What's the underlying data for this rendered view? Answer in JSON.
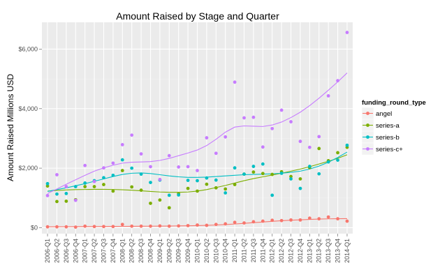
{
  "chart_data": {
    "type": "scatter",
    "title": "Amount Raised by Stage and Quarter",
    "xlabel": "",
    "ylabel": "Amount Raised Millions USD",
    "ylim": [
      -200,
      6900
    ],
    "y_ticks": [
      0,
      2000,
      4000,
      6000
    ],
    "y_tick_labels": [
      "$0",
      "$2,000",
      "$4,000",
      "$6,000"
    ],
    "categories": [
      "2006-Q1",
      "2006-Q2",
      "2006-Q3",
      "2006-Q4",
      "2007-Q1",
      "2007-Q2",
      "2007-Q3",
      "2007-Q4",
      "2008-Q1",
      "2008-Q2",
      "2008-Q3",
      "2008-Q4",
      "2009-Q1",
      "2009-Q2",
      "2009-Q3",
      "2009-Q4",
      "2010-Q1",
      "2010-Q2",
      "2010-Q3",
      "2010-Q4",
      "2011-Q1",
      "2011-Q2",
      "2011-Q3",
      "2011-Q4",
      "2012-Q1",
      "2012-Q2",
      "2012-Q3",
      "2012-Q4",
      "2013-Q1",
      "2013-Q2",
      "2013-Q3",
      "2013-Q4",
      "2014-Q1"
    ],
    "grid": true,
    "legend": {
      "title": "funding_round_type",
      "position": "right"
    },
    "series": [
      {
        "name": "angel",
        "color": "#F8766D",
        "values": [
          30,
          30,
          30,
          20,
          50,
          40,
          40,
          40,
          110,
          50,
          50,
          50,
          60,
          50,
          60,
          70,
          90,
          80,
          110,
          130,
          180,
          160,
          200,
          220,
          250,
          240,
          260,
          260,
          320,
          300,
          360,
          300,
          220
        ],
        "trend": [
          30,
          32,
          34,
          36,
          38,
          40,
          42,
          44,
          46,
          48,
          50,
          52,
          54,
          57,
          61,
          66,
          72,
          80,
          90,
          105,
          125,
          148,
          170,
          192,
          215,
          235,
          252,
          265,
          278,
          290,
          298,
          302,
          305
        ]
      },
      {
        "name": "series-a",
        "color": "#7CAE00",
        "values": [
          1400,
          880,
          890,
          940,
          1380,
          1380,
          1450,
          1230,
          1920,
          1370,
          1260,
          820,
          930,
          670,
          1140,
          1320,
          1230,
          1460,
          1340,
          1300,
          1450,
          1800,
          1870,
          1820,
          1790,
          1880,
          1720,
          1640,
          2020,
          2660,
          2250,
          2520,
          2700
        ],
        "trend": [
          1230,
          1250,
          1270,
          1280,
          1285,
          1290,
          1290,
          1285,
          1275,
          1260,
          1240,
          1220,
          1200,
          1190,
          1190,
          1200,
          1230,
          1280,
          1350,
          1420,
          1500,
          1580,
          1650,
          1710,
          1770,
          1830,
          1900,
          1970,
          2050,
          2140,
          2230,
          2330,
          2450
        ]
      },
      {
        "name": "series-b",
        "color": "#00BFC4",
        "values": [
          1480,
          1130,
          1150,
          1380,
          1500,
          1580,
          1680,
          1760,
          2280,
          2000,
          1800,
          1520,
          1600,
          1090,
          1100,
          1590,
          1580,
          1670,
          1600,
          1170,
          2010,
          1800,
          2060,
          2140,
          1090,
          1830,
          1640,
          1320,
          2060,
          1810,
          2210,
          2270,
          2770
        ],
        "trend": [
          1220,
          1280,
          1340,
          1410,
          1480,
          1560,
          1640,
          1720,
          1790,
          1830,
          1840,
          1820,
          1780,
          1740,
          1710,
          1690,
          1690,
          1700,
          1720,
          1740,
          1760,
          1780,
          1790,
          1800,
          1810,
          1830,
          1860,
          1900,
          1970,
          2070,
          2200,
          2360,
          2540
        ]
      },
      {
        "name": "series-c+",
        "color": "#C77CFF",
        "values": [
          1080,
          1780,
          1380,
          920,
          2090,
          1550,
          2010,
          2170,
          2790,
          3110,
          2480,
          2050,
          1620,
          2420,
          2040,
          2050,
          1920,
          3020,
          2500,
          3050,
          4890,
          3690,
          3710,
          2710,
          3330,
          3950,
          3560,
          2900,
          2700,
          3060,
          4430,
          4940,
          6560
        ],
        "trend": [
          1150,
          1300,
          1460,
          1610,
          1760,
          1900,
          2010,
          2100,
          2170,
          2200,
          2210,
          2220,
          2260,
          2330,
          2420,
          2510,
          2610,
          2760,
          2970,
          3210,
          3380,
          3420,
          3410,
          3400,
          3450,
          3550,
          3700,
          3880,
          4100,
          4350,
          4620,
          4900,
          5200
        ]
      }
    ]
  }
}
